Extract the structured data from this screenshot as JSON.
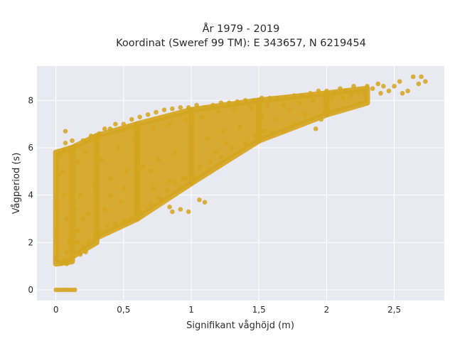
{
  "chart_data": {
    "type": "scatter",
    "title_lines": [
      "År 1979 - 2019",
      "Koordinat (Sweref 99 TM): E 343657, N 6219454"
    ],
    "xlabel": "Signifikant våghöjd (m)",
    "ylabel": "Vågperiod (s)",
    "xlim": [
      -0.14,
      2.87
    ],
    "ylim": [
      -0.45,
      9.45
    ],
    "x_ticks": [
      0,
      0.5,
      1,
      1.5,
      2,
      2.5
    ],
    "x_tick_labels": [
      "0",
      "0,5",
      "1",
      "1,5",
      "2",
      "2,5"
    ],
    "y_ticks": [
      0,
      2,
      4,
      6,
      8
    ],
    "y_tick_labels": [
      "0",
      "2",
      "4",
      "6",
      "8"
    ],
    "grid": true,
    "legend": "none",
    "colors": {
      "marker": "#d4a520",
      "plot_bg": "#e9e9f1",
      "grid": "#ffffff"
    },
    "series": [
      {
        "points": [
          [
            0.0,
            0.0
          ],
          [
            0.02,
            0.0
          ],
          [
            0.04,
            0.0
          ],
          [
            0.06,
            0.0
          ],
          [
            0.08,
            0.0
          ],
          [
            0.1,
            0.0
          ],
          [
            0.12,
            0.0
          ],
          [
            0.14,
            0.0
          ],
          [
            0.0,
            1.3
          ],
          [
            0.01,
            2.4
          ],
          [
            0.01,
            3.6
          ],
          [
            0.02,
            4.9
          ],
          [
            0.03,
            5.7
          ],
          [
            0.04,
            1.1
          ],
          [
            0.06,
            1.2
          ],
          [
            0.08,
            1.1
          ],
          [
            0.1,
            1.3
          ],
          [
            0.12,
            1.5
          ],
          [
            0.14,
            1.6
          ],
          [
            0.18,
            1.5
          ],
          [
            0.22,
            1.6
          ],
          [
            0.06,
            5.9
          ],
          [
            0.07,
            6.2
          ],
          [
            0.07,
            6.7
          ],
          [
            0.1,
            6.0
          ],
          [
            0.12,
            6.3
          ],
          [
            0.15,
            6.1
          ],
          [
            0.2,
            6.3
          ],
          [
            0.26,
            6.5
          ],
          [
            0.32,
            6.6
          ],
          [
            0.36,
            6.8
          ],
          [
            0.4,
            6.8
          ],
          [
            0.44,
            7.0
          ],
          [
            0.5,
            7.0
          ],
          [
            0.56,
            7.2
          ],
          [
            0.62,
            7.3
          ],
          [
            0.68,
            7.4
          ],
          [
            0.74,
            7.5
          ],
          [
            0.8,
            7.6
          ],
          [
            0.86,
            7.65
          ],
          [
            0.92,
            7.7
          ],
          [
            0.98,
            7.7
          ],
          [
            1.04,
            7.8
          ],
          [
            1.1,
            7.7
          ],
          [
            1.16,
            7.8
          ],
          [
            1.22,
            7.9
          ],
          [
            1.28,
            7.9
          ],
          [
            1.34,
            7.95
          ],
          [
            1.4,
            8.0
          ],
          [
            1.46,
            8.0
          ],
          [
            1.52,
            8.1
          ],
          [
            1.58,
            8.1
          ],
          [
            1.64,
            8.1
          ],
          [
            1.7,
            8.1
          ],
          [
            1.76,
            8.2
          ],
          [
            1.82,
            8.2
          ],
          [
            1.88,
            8.3
          ],
          [
            1.94,
            8.4
          ],
          [
            2.0,
            8.4
          ],
          [
            2.06,
            8.3
          ],
          [
            2.1,
            8.5
          ],
          [
            2.14,
            8.4
          ],
          [
            2.2,
            8.6
          ],
          [
            2.24,
            8.3
          ],
          [
            2.3,
            8.6
          ],
          [
            2.34,
            8.5
          ],
          [
            2.38,
            8.7
          ],
          [
            2.42,
            8.6
          ],
          [
            2.46,
            8.4
          ],
          [
            2.5,
            8.6
          ],
          [
            2.54,
            8.8
          ],
          [
            2.6,
            8.4
          ],
          [
            2.64,
            9.0
          ],
          [
            2.68,
            8.7
          ],
          [
            2.7,
            9.0
          ],
          [
            2.73,
            8.8
          ],
          [
            2.56,
            8.3
          ],
          [
            2.4,
            8.3
          ],
          [
            2.12,
            8.1
          ],
          [
            2.0,
            7.9
          ],
          [
            1.96,
            7.2
          ],
          [
            1.92,
            6.8
          ],
          [
            1.84,
            7.4
          ],
          [
            1.76,
            7.0
          ],
          [
            1.68,
            6.7
          ],
          [
            1.6,
            6.6
          ],
          [
            1.54,
            6.7
          ],
          [
            1.48,
            6.5
          ],
          [
            1.4,
            6.2
          ],
          [
            1.3,
            6.0
          ],
          [
            1.22,
            5.6
          ],
          [
            1.14,
            5.4
          ],
          [
            1.06,
            5.2
          ],
          [
            1.0,
            5.0
          ],
          [
            0.94,
            4.7
          ],
          [
            0.88,
            4.5
          ],
          [
            0.82,
            4.2
          ],
          [
            0.76,
            3.9
          ],
          [
            0.7,
            3.6
          ],
          [
            0.62,
            3.3
          ],
          [
            0.56,
            3.0
          ],
          [
            0.5,
            2.9
          ],
          [
            0.44,
            2.8
          ],
          [
            0.38,
            2.7
          ],
          [
            0.32,
            2.4
          ],
          [
            0.28,
            2.1
          ],
          [
            0.24,
            2.0
          ],
          [
            0.2,
            1.8
          ],
          [
            0.92,
            4.3
          ],
          [
            0.96,
            4.7
          ],
          [
            1.06,
            3.8
          ],
          [
            1.1,
            3.7
          ],
          [
            0.98,
            3.3
          ],
          [
            0.92,
            3.4
          ],
          [
            0.84,
            3.5
          ],
          [
            0.86,
            3.3
          ],
          [
            0.78,
            3.8
          ],
          [
            0.7,
            5.0
          ],
          [
            0.6,
            4.8
          ],
          [
            0.5,
            4.3
          ],
          [
            0.4,
            4.0
          ],
          [
            0.3,
            3.6
          ],
          [
            0.2,
            3.0
          ],
          [
            0.16,
            2.5
          ],
          [
            0.1,
            2.0
          ],
          [
            0.08,
            3.0
          ],
          [
            0.06,
            4.0
          ],
          [
            0.05,
            5.0
          ],
          [
            0.34,
            5.5
          ],
          [
            0.46,
            6.0
          ],
          [
            0.58,
            6.4
          ],
          [
            0.72,
            6.8
          ],
          [
            0.84,
            7.0
          ],
          [
            0.96,
            7.2
          ],
          [
            1.08,
            7.3
          ],
          [
            1.2,
            7.5
          ],
          [
            1.32,
            7.6
          ],
          [
            1.44,
            7.7
          ],
          [
            1.56,
            7.8
          ],
          [
            1.68,
            7.8
          ],
          [
            1.8,
            7.9
          ],
          [
            1.9,
            8.0
          ],
          [
            2.04,
            8.1
          ],
          [
            2.18,
            8.2
          ],
          [
            2.28,
            8.3
          ],
          [
            1.62,
            7.2
          ],
          [
            1.5,
            7.0
          ],
          [
            1.36,
            6.9
          ],
          [
            1.24,
            6.7
          ],
          [
            1.12,
            6.4
          ],
          [
            1.0,
            6.1
          ],
          [
            0.88,
            5.8
          ],
          [
            0.76,
            5.5
          ],
          [
            0.64,
            5.2
          ],
          [
            0.52,
            5.0
          ],
          [
            0.4,
            4.7
          ],
          [
            0.28,
            4.4
          ],
          [
            0.18,
            4.0
          ],
          [
            0.14,
            3.4
          ],
          [
            0.12,
            2.7
          ],
          [
            0.24,
            3.2
          ],
          [
            0.36,
            3.4
          ],
          [
            0.48,
            3.7
          ],
          [
            0.6,
            4.0
          ],
          [
            0.72,
            4.3
          ],
          [
            0.84,
            4.6
          ],
          [
            1.18,
            5.8
          ],
          [
            1.26,
            6.2
          ],
          [
            1.52,
            7.3
          ],
          [
            1.72,
            7.6
          ],
          [
            0.3,
            6.1
          ],
          [
            0.22,
            5.8
          ],
          [
            0.16,
            5.4
          ],
          [
            0.12,
            4.7
          ],
          [
            0.08,
            1.6
          ],
          [
            0.16,
            2.0
          ]
        ],
        "clouds": [
          {
            "x": [
              0.0,
              0.12
            ],
            "y_min": [
              1.1,
              1.2
            ],
            "y_max": [
              5.8,
              6.0
            ]
          },
          {
            "x": [
              0.12,
              0.3
            ],
            "y_min": [
              1.4,
              2.0
            ],
            "y_max": [
              6.0,
              6.5
            ]
          },
          {
            "x": [
              0.3,
              0.6
            ],
            "y_min": [
              2.2,
              3.0
            ],
            "y_max": [
              6.5,
              7.0
            ]
          },
          {
            "x": [
              0.6,
              1.0
            ],
            "y_min": [
              3.0,
              4.5
            ],
            "y_max": [
              7.0,
              7.6
            ]
          },
          {
            "x": [
              1.0,
              1.5
            ],
            "y_min": [
              4.5,
              6.3
            ],
            "y_max": [
              7.6,
              8.0
            ]
          },
          {
            "x": [
              1.5,
              2.0
            ],
            "y_min": [
              6.3,
              7.4
            ],
            "y_max": [
              8.0,
              8.3
            ]
          },
          {
            "x": [
              2.0,
              2.3
            ],
            "y_min": [
              7.4,
              7.9
            ],
            "y_max": [
              8.3,
              8.5
            ]
          }
        ]
      }
    ]
  }
}
